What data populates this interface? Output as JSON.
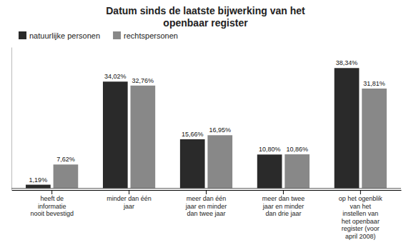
{
  "chart_data": {
    "type": "bar",
    "title": "Datum sinds de laatste bijwerking van het\nopenbaar register",
    "categories": [
      "heeft de\ninformatie\nnooit bevestigd",
      "minder dan één\njaar",
      "meer dan één\njaar en minder\ndan twee jaar",
      "meer dan twee\njaar en minder\ndan drie jaar",
      "op het ogenblik\nvan het\ninstellen van\nhet openbaar\nregister (voor\napril 2008)"
    ],
    "series": [
      {
        "name": "natuurlijke personen",
        "color": "#2a2a2a",
        "values": [
          1.19,
          34.02,
          15.66,
          10.8,
          38.34
        ],
        "value_labels": [
          "1,19%",
          "34,02%",
          "15,66%",
          "10,80%",
          "38,34%"
        ]
      },
      {
        "name": "rechtspersonen",
        "color": "#888888",
        "values": [
          7.62,
          32.76,
          16.95,
          10.86,
          31.81
        ],
        "value_labels": [
          "7,62%",
          "32,76%",
          "16,95%",
          "10,86%",
          "31,81%"
        ]
      }
    ],
    "ylim": [
      -0.5,
      45
    ],
    "tick_labels": "x",
    "data_labels": true,
    "legend": "upper left"
  }
}
